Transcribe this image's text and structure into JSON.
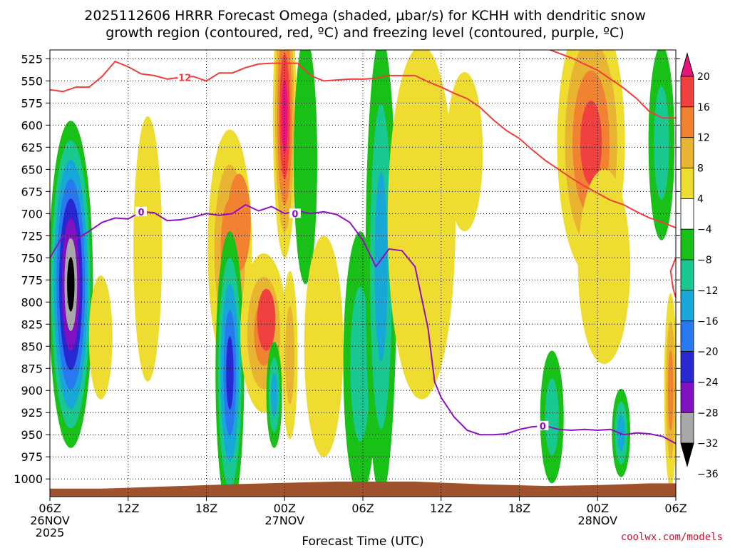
{
  "chart_data": {
    "type": "heatmap",
    "title_line1": "2025112606 HRRR Forecast Omega (shaded, μbar/s) for KCHH with dendritic snow",
    "title_line2": "growth region (contoured, red, ºC) and freezing level (contoured, purple, ºC)",
    "xlabel": "Forecast Time (UTC)",
    "credit": "coolwx.com/models",
    "y_ticks": [
      "525",
      "550",
      "575",
      "600",
      "625",
      "650",
      "675",
      "700",
      "725",
      "750",
      "775",
      "800",
      "825",
      "850",
      "875",
      "900",
      "925",
      "950",
      "975",
      "1000"
    ],
    "y_range_mb": [
      515,
      1020
    ],
    "x_range_hours": [
      0,
      48
    ],
    "x_ticks": [
      {
        "hour": 0,
        "lines": [
          "06Z",
          "26NOV",
          "2025"
        ]
      },
      {
        "hour": 6,
        "lines": [
          "12Z"
        ]
      },
      {
        "hour": 12,
        "lines": [
          "18Z"
        ]
      },
      {
        "hour": 18,
        "lines": [
          "00Z",
          "27NOV"
        ]
      },
      {
        "hour": 24,
        "lines": [
          "06Z"
        ]
      },
      {
        "hour": 30,
        "lines": [
          "12Z"
        ]
      },
      {
        "hour": 36,
        "lines": [
          "18Z"
        ]
      },
      {
        "hour": 42,
        "lines": [
          "00Z",
          "28NOV"
        ]
      },
      {
        "hour": 48,
        "lines": [
          "06Z"
        ]
      }
    ],
    "colorbar": {
      "labels": [
        "20",
        "16",
        "12",
        "8",
        "4",
        "−4",
        "−8",
        "−12",
        "−16",
        "−20",
        "−24",
        "−28",
        "−32",
        "−36"
      ],
      "colors": [
        "#e8147a",
        "#f04040",
        "#f08232",
        "#e8b432",
        "#eedd30",
        "#ffffff",
        "#18c018",
        "#18c890",
        "#18a8d8",
        "#2878f0",
        "#2828d0",
        "#8010c0",
        "#a8a8a8",
        "#000000"
      ]
    },
    "contour_labels": {
      "dgz": "-12",
      "freezing": "0"
    },
    "dgz_line": [
      [
        0,
        560
      ],
      [
        1,
        562
      ],
      [
        2,
        557
      ],
      [
        3,
        557
      ],
      [
        4,
        545
      ],
      [
        5,
        528
      ],
      [
        6,
        534
      ],
      [
        7,
        542
      ],
      [
        8,
        544
      ],
      [
        9,
        548
      ],
      [
        10,
        546
      ],
      [
        11,
        545
      ],
      [
        12,
        550
      ],
      [
        13,
        541
      ],
      [
        14,
        541
      ],
      [
        15,
        535
      ],
      [
        16,
        531
      ],
      [
        17,
        530
      ],
      [
        18,
        530
      ],
      [
        19,
        530
      ],
      [
        20,
        544
      ],
      [
        21,
        550
      ],
      [
        22,
        549
      ],
      [
        23,
        548
      ],
      [
        24,
        548
      ],
      [
        25,
        547
      ],
      [
        26,
        544
      ],
      [
        27,
        544
      ],
      [
        28,
        544
      ],
      [
        29,
        551
      ],
      [
        30,
        557
      ],
      [
        31,
        564
      ],
      [
        32,
        570
      ],
      [
        33,
        580
      ],
      [
        34,
        594
      ],
      [
        35,
        606
      ],
      [
        36,
        615
      ],
      [
        37,
        628
      ],
      [
        38,
        640
      ],
      [
        39,
        650
      ],
      [
        40,
        660
      ],
      [
        41,
        669
      ],
      [
        42,
        677
      ],
      [
        43,
        685
      ],
      [
        44,
        690
      ],
      [
        45,
        698
      ],
      [
        46,
        705
      ],
      [
        47,
        710
      ],
      [
        48,
        716
      ]
    ],
    "dgz_line2": [
      [
        38,
        513
      ],
      [
        40,
        524
      ],
      [
        42,
        538
      ],
      [
        44,
        558
      ],
      [
        45,
        570
      ],
      [
        46,
        585
      ],
      [
        47,
        592
      ],
      [
        48,
        592
      ]
    ],
    "dgz_line3": [
      [
        48,
        750
      ],
      [
        47.6,
        765
      ],
      [
        47.8,
        785
      ],
      [
        48,
        795
      ]
    ],
    "freezing_line": [
      [
        0,
        750
      ],
      [
        1,
        725
      ],
      [
        2,
        729
      ],
      [
        3,
        720
      ],
      [
        4,
        710
      ],
      [
        5,
        705
      ],
      [
        6,
        706
      ],
      [
        7,
        698
      ],
      [
        8,
        699
      ],
      [
        9,
        708
      ],
      [
        10,
        707
      ],
      [
        11,
        704
      ],
      [
        12,
        700
      ],
      [
        13,
        702
      ],
      [
        14,
        700
      ],
      [
        15,
        690
      ],
      [
        16,
        697
      ],
      [
        17,
        692
      ],
      [
        18,
        700
      ],
      [
        19,
        697
      ],
      [
        20,
        700
      ],
      [
        21,
        698
      ],
      [
        22,
        701
      ],
      [
        23,
        710
      ],
      [
        24,
        730
      ],
      [
        25,
        760
      ],
      [
        26,
        740
      ],
      [
        27,
        742
      ],
      [
        28,
        760
      ],
      [
        29,
        830
      ],
      [
        29.5,
        890
      ],
      [
        30,
        908
      ],
      [
        31,
        930
      ],
      [
        32,
        945
      ],
      [
        33,
        950
      ],
      [
        34,
        950
      ],
      [
        35,
        949
      ],
      [
        36,
        944
      ],
      [
        37,
        941
      ],
      [
        38,
        940
      ],
      [
        39,
        944
      ],
      [
        40,
        945
      ],
      [
        41,
        944
      ],
      [
        42,
        945
      ],
      [
        43,
        944
      ],
      [
        44,
        950
      ],
      [
        45,
        948
      ],
      [
        46,
        949
      ],
      [
        47,
        952
      ],
      [
        48,
        960
      ]
    ],
    "blobs": [
      {
        "t": 1.6,
        "p": 780,
        "rx": 1.7,
        "ry": 185,
        "levels": [
          -8,
          -12,
          -16,
          -20,
          -24,
          -28,
          -32,
          -36
        ]
      },
      {
        "t": 3.9,
        "p": 840,
        "rx": 0.9,
        "ry": 70,
        "levels": [
          4
        ]
      },
      {
        "t": 7.5,
        "p": 740,
        "rx": 1.1,
        "ry": 150,
        "levels": [
          4
        ]
      },
      {
        "t": 13.8,
        "p": 740,
        "rx": 1.7,
        "ry": 135,
        "levels": [
          4,
          8,
          12
        ]
      },
      {
        "t": 14.5,
        "p": 710,
        "rx": 0.9,
        "ry": 55,
        "levels": [
          12
        ]
      },
      {
        "t": 13.8,
        "p": 880,
        "rx": 1.1,
        "ry": 160,
        "levels": [
          -8,
          -12,
          -16,
          -20,
          -24
        ]
      },
      {
        "t": 16.4,
        "p": 835,
        "rx": 1.8,
        "ry": 90,
        "levels": [
          4,
          8,
          12
        ]
      },
      {
        "t": 16.6,
        "p": 820,
        "rx": 0.7,
        "ry": 35,
        "levels": [
          16
        ]
      },
      {
        "t": 17.2,
        "p": 905,
        "rx": 0.6,
        "ry": 60,
        "levels": [
          -8,
          -12,
          -16
        ]
      },
      {
        "t": 18.0,
        "p": 590,
        "rx": 0.9,
        "ry": 160,
        "levels": [
          4,
          8,
          12,
          16,
          20
        ]
      },
      {
        "t": 18.4,
        "p": 860,
        "rx": 0.6,
        "ry": 95,
        "levels": [
          4,
          8
        ]
      },
      {
        "t": 19.6,
        "p": 640,
        "rx": 0.9,
        "ry": 140,
        "levels": [
          -8
        ]
      },
      {
        "t": 21.0,
        "p": 850,
        "rx": 1.5,
        "ry": 125,
        "levels": [
          4
        ]
      },
      {
        "t": 23.8,
        "p": 870,
        "rx": 1.3,
        "ry": 150,
        "levels": [
          -8,
          -12
        ]
      },
      {
        "t": 25.4,
        "p": 760,
        "rx": 1.2,
        "ry": 260,
        "levels": [
          -8,
          -12,
          -16
        ]
      },
      {
        "t": 28.5,
        "p": 710,
        "rx": 2.6,
        "ry": 200,
        "levels": [
          4
        ]
      },
      {
        "t": 31.8,
        "p": 630,
        "rx": 1.4,
        "ry": 90,
        "levels": [
          4
        ]
      },
      {
        "t": 38.5,
        "p": 930,
        "rx": 0.9,
        "ry": 75,
        "levels": [
          -8,
          -12
        ]
      },
      {
        "t": 41.5,
        "p": 620,
        "rx": 2.6,
        "ry": 150,
        "levels": [
          4,
          8,
          12,
          16
        ]
      },
      {
        "t": 42.5,
        "p": 760,
        "rx": 2.0,
        "ry": 110,
        "levels": [
          4
        ]
      },
      {
        "t": 43.8,
        "p": 948,
        "rx": 0.7,
        "ry": 50,
        "levels": [
          -8,
          -12,
          -16
        ]
      },
      {
        "t": 46.9,
        "p": 620,
        "rx": 1.0,
        "ry": 110,
        "levels": [
          -8,
          -12
        ]
      },
      {
        "t": 47.6,
        "p": 900,
        "rx": 0.5,
        "ry": 110,
        "levels": [
          4,
          8,
          12
        ]
      }
    ]
  }
}
